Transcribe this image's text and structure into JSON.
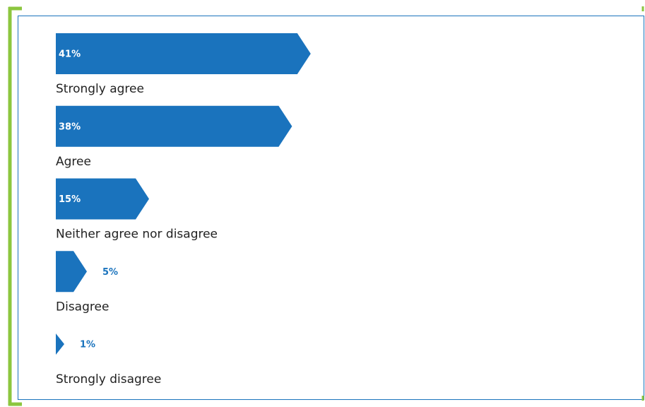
{
  "chart_data": {
    "type": "bar",
    "categories": [
      "Strongly agree",
      "Agree",
      "Neither agree nor disagree",
      "Disagree",
      "Strongly disagree"
    ],
    "values": [
      41,
      38,
      15,
      5,
      1
    ],
    "value_labels": [
      "41%",
      "38%",
      "15%",
      "5%",
      "1%"
    ],
    "color": "#1a73bd"
  }
}
